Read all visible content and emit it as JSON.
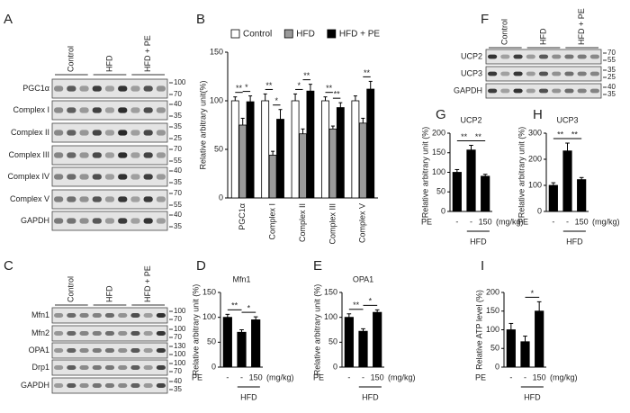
{
  "chart_data": [
    {
      "panel": "B",
      "type": "bar",
      "y_label": "Relative arbitrary unit(%)",
      "categories": [
        "PGC1α",
        "Complex I",
        "Complex II",
        "Complex III",
        "Complex V"
      ],
      "series": [
        {
          "name": "Control",
          "color": "#ffffff",
          "values": [
            100,
            100,
            100,
            100,
            100
          ],
          "errors": [
            4,
            7,
            7,
            4,
            5
          ]
        },
        {
          "name": "HFD",
          "color": "#9a9a9a",
          "values": [
            75,
            44,
            66,
            71,
            77
          ],
          "errors": [
            7,
            4,
            5,
            3,
            5
          ]
        },
        {
          "name": "HFD + PE",
          "color": "#000000",
          "values": [
            99,
            81,
            110,
            93,
            112
          ],
          "errors": [
            6,
            10,
            7,
            5,
            8
          ]
        }
      ],
      "ylim": [
        0,
        150
      ],
      "yticks": [
        0,
        50,
        100,
        150
      ],
      "annotations": [
        "**",
        "*",
        "**",
        "*",
        "*",
        "**",
        "**",
        "**",
        "**"
      ]
    },
    {
      "panel": "D",
      "type": "bar",
      "title": "Mfn1",
      "y_label": "Relative arbitrary unit (%)",
      "categories": [
        "-",
        "-",
        "150"
      ],
      "values": [
        100,
        70,
        95
      ],
      "errors": [
        6,
        5,
        6
      ],
      "color": "#000000",
      "ylim": [
        0,
        150
      ],
      "yticks": [
        0,
        50,
        100,
        150
      ],
      "annotations": [
        "**",
        "*"
      ],
      "x_prefix": "PE",
      "x_unit": "(mg/kg)",
      "group_label": "HFD"
    },
    {
      "panel": "E",
      "type": "bar",
      "title": "OPA1",
      "y_label": "Relative arbitrary unit (%)",
      "categories": [
        "-",
        "-",
        "150"
      ],
      "values": [
        100,
        72,
        110
      ],
      "errors": [
        7,
        5,
        5
      ],
      "color": "#000000",
      "ylim": [
        0,
        150
      ],
      "yticks": [
        0,
        50,
        100,
        150
      ],
      "annotations": [
        "**",
        "*"
      ],
      "x_prefix": "PE",
      "x_unit": "(mg/kg)",
      "group_label": "HFD"
    },
    {
      "panel": "G",
      "type": "bar",
      "title": "UCP2",
      "y_label": "Relative arbitrary unit (%)",
      "categories": [
        "-",
        "-",
        "150"
      ],
      "values": [
        100,
        157,
        90
      ],
      "errors": [
        7,
        12,
        5
      ],
      "color": "#000000",
      "ylim": [
        0,
        200
      ],
      "yticks": [
        0,
        50,
        100,
        150,
        200
      ],
      "annotations": [
        "**",
        "**"
      ],
      "x_prefix": "PE",
      "x_unit": "(mg/kg)",
      "group_label": "HFD"
    },
    {
      "panel": "H",
      "type": "bar",
      "title": "UCP3",
      "y_label": "Relative arbitrary unit (%)",
      "categories": [
        "-",
        "-",
        "150"
      ],
      "values": [
        100,
        232,
        122
      ],
      "errors": [
        10,
        30,
        8
      ],
      "color": "#000000",
      "ylim": [
        0,
        300
      ],
      "yticks": [
        0,
        100,
        200,
        300
      ],
      "annotations": [
        "**",
        "**"
      ],
      "x_prefix": "PE",
      "x_unit": "(mg/kg)",
      "group_label": "HFD"
    },
    {
      "panel": "I",
      "type": "bar",
      "y_label": "Relative ATP level (%)",
      "categories": [
        "-",
        "-",
        "150"
      ],
      "values": [
        100,
        68,
        150
      ],
      "errors": [
        17,
        15,
        25
      ],
      "color": "#000000",
      "ylim": [
        0,
        200
      ],
      "yticks": [
        0,
        50,
        100,
        150,
        200
      ],
      "annotations": [
        "*"
      ],
      "x_prefix": "PE",
      "x_unit": "(mg/kg)",
      "group_label": "HFD"
    }
  ],
  "blots": [
    {
      "panel": "A",
      "groups": [
        "Control",
        "HFD",
        "HFD + PE"
      ],
      "rows": [
        {
          "label": "PGC1α",
          "markers": [
            100,
            70
          ]
        },
        {
          "label": "Complex I",
          "markers": [
            40,
            35
          ]
        },
        {
          "label": "Complex II",
          "markers": [
            35,
            25
          ]
        },
        {
          "label": "Complex III",
          "markers": [
            70,
            55
          ]
        },
        {
          "label": "Complex IV",
          "markers": [
            40,
            35
          ]
        },
        {
          "label": "Complex V",
          "markers": [
            70,
            55
          ]
        },
        {
          "label": "GAPDH",
          "markers": [
            40,
            35
          ]
        }
      ]
    },
    {
      "panel": "C",
      "groups": [
        "Control",
        "HFD",
        "HFD + PE"
      ],
      "rows": [
        {
          "label": "Mfn1",
          "markers": [
            100,
            70
          ]
        },
        {
          "label": "Mfn2",
          "markers": [
            100,
            70
          ]
        },
        {
          "label": "OPA1",
          "markers": [
            130,
            100
          ]
        },
        {
          "label": "Drp1",
          "markers": [
            100,
            70
          ]
        },
        {
          "label": "GAPDH",
          "markers": [
            40,
            35
          ]
        }
      ]
    },
    {
      "panel": "F",
      "groups": [
        "Control",
        "HFD",
        "HFD + PE"
      ],
      "rows": [
        {
          "label": "UCP2",
          "markers": [
            70,
            55
          ]
        },
        {
          "label": "UCP3",
          "markers": [
            35,
            25
          ]
        },
        {
          "label": "GAPDH",
          "markers": [
            40,
            35
          ]
        }
      ]
    }
  ]
}
